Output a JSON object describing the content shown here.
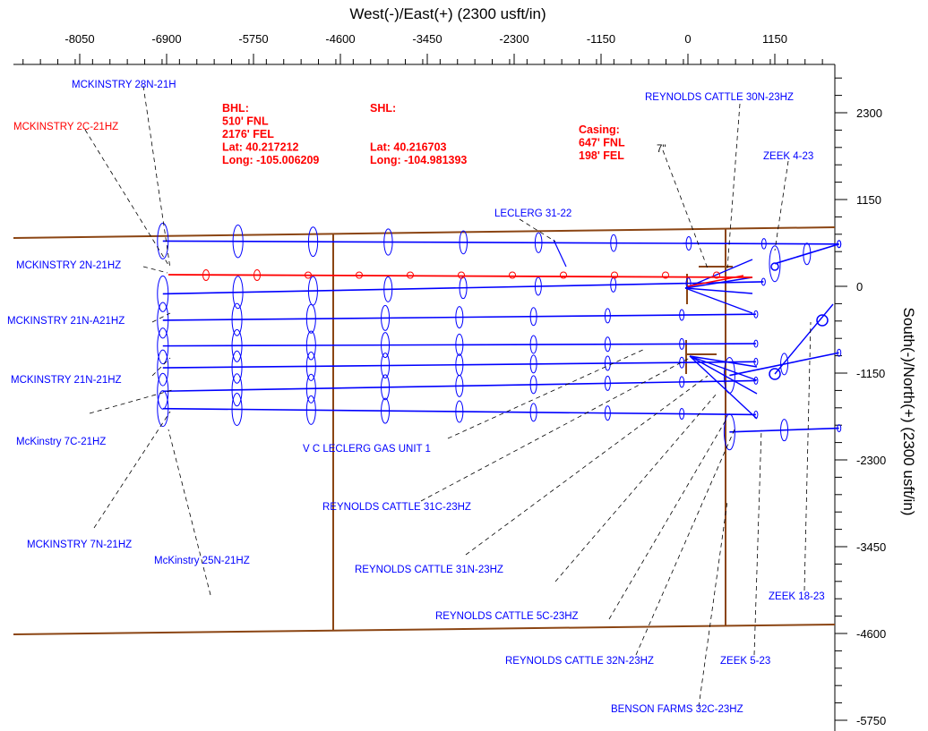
{
  "chart_data": {
    "type": "scatter",
    "title": "",
    "xlabel": "West(-)/East(+) (2300 usft/in)",
    "ylabel": "South(-)/North(+) (2300 usft/in)",
    "xlim": [
      -8800,
      2100
    ],
    "ylim": [
      -5800,
      3350
    ],
    "x_ticks": [
      "-8050",
      "-6900",
      "-5750",
      "-4600",
      "-3450",
      "-2300",
      "-1150",
      "0",
      "1150"
    ],
    "y_ticks": [
      "2300",
      "1150",
      "0",
      "-1150",
      "-2300",
      "-3450",
      "-4600",
      "-5750"
    ],
    "colors": {
      "offset_wells": "#0000ff",
      "subject_well": "#ff0000",
      "lease_lines": "#8b4513",
      "leader_lines": "#000000"
    },
    "annotations": {
      "bhl": [
        "BHL:",
        "510' FNL",
        "2176' FEL",
        "Lat: 40.217212",
        "Long: -105.006209"
      ],
      "shl": [
        "SHL:",
        "",
        "",
        "Lat: 40.216703",
        "Long: -104.981393"
      ],
      "casing": [
        "Casing:",
        "647' FNL",
        "198' FEL"
      ],
      "casing_size": "7\""
    },
    "well_labels": [
      "MCKINSTRY 28N-21H",
      "MCKINSTRY 2C-21HZ",
      "MCKINSTRY 2N-21HZ",
      "MCKINSTRY 21N-A21HZ",
      "MCKINSTRY 21N-21HZ",
      "McKinstry 7C-21HZ",
      "MCKINSTRY 7N-21HZ",
      "McKinstry 25N-21HZ",
      "LECLERG 31-22",
      "V C LECLERG GAS UNIT 1",
      "REYNOLDS CATTLE 31C-23HZ",
      "REYNOLDS CATTLE 31N-23HZ",
      "REYNOLDS CATTLE 5C-23HZ",
      "REYNOLDS CATTLE 32N-23HZ",
      "BENSON FARMS 32C-23HZ",
      "REYNOLDS CATTLE 30N-23HZ",
      "ZEEK 4-23",
      "ZEEK 18-23",
      "ZEEK 5-23"
    ],
    "subject_well": {
      "name": "MCKINSTRY 2C-21HZ",
      "x": [
        0,
        180,
        600,
        900,
        -2300,
        -4600,
        -6900
      ],
      "y": [
        0,
        150,
        120,
        110,
        130,
        150,
        170
      ]
    },
    "laterals": [
      {
        "from": [
          -6950,
          600
        ],
        "to": [
          2000,
          560
        ]
      },
      {
        "from": [
          -6950,
          -100
        ],
        "to": [
          1000,
          60
        ]
      },
      {
        "from": [
          -6950,
          -450
        ],
        "to": [
          900,
          -370
        ]
      },
      {
        "from": [
          -6950,
          -790
        ],
        "to": [
          900,
          -760
        ]
      },
      {
        "from": [
          -6950,
          -1080
        ],
        "to": [
          900,
          -1000
        ]
      },
      {
        "from": [
          -6950,
          -1390
        ],
        "to": [
          900,
          -1250
        ]
      },
      {
        "from": [
          -6950,
          -1620
        ],
        "to": [
          900,
          -1700
        ]
      },
      {
        "from": [
          550,
          -1930
        ],
        "to": [
          2000,
          -1880
        ]
      },
      {
        "from": [
          550,
          -1180
        ],
        "to": [
          2000,
          -880
        ]
      },
      {
        "from": [
          1150,
          300
        ],
        "to": [
          2000,
          560
        ]
      }
    ]
  }
}
